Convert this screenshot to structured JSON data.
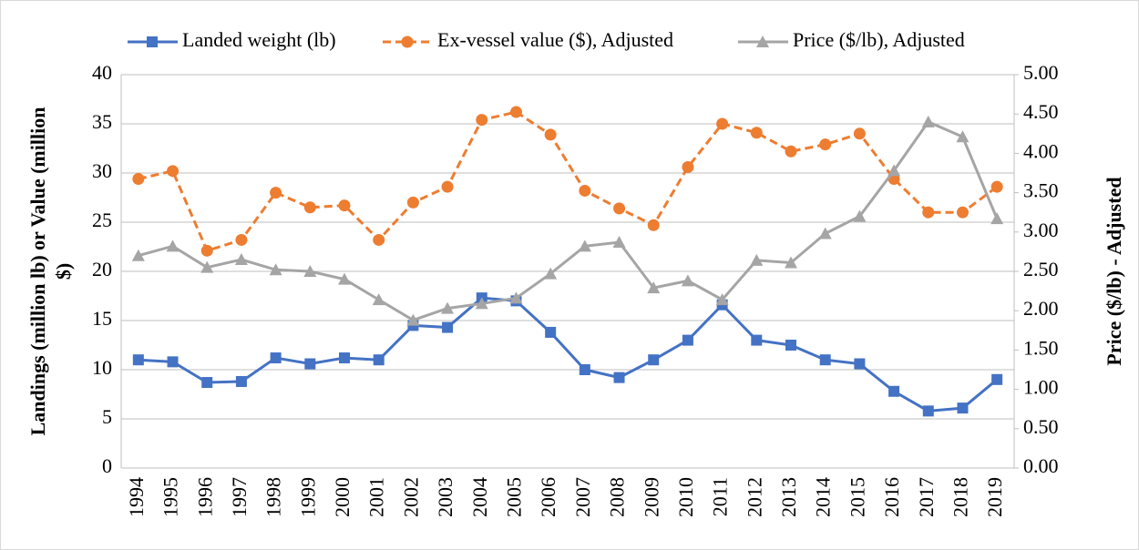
{
  "chart_data": {
    "type": "line",
    "categories": [
      "1994",
      "1995",
      "1996",
      "1997",
      "1998",
      "1999",
      "2000",
      "2001",
      "2002",
      "2003",
      "2004",
      "2005",
      "2006",
      "2007",
      "2008",
      "2009",
      "2010",
      "2011",
      "2012",
      "2013",
      "2014",
      "2015",
      "2016",
      "2017",
      "2018",
      "2019"
    ],
    "series": [
      {
        "name": "Landed weight (lb)",
        "color": "#4472c4",
        "marker": "square",
        "dash": false,
        "values": [
          11.0,
          10.8,
          8.7,
          8.8,
          11.2,
          10.6,
          11.2,
          11.0,
          14.5,
          14.3,
          17.3,
          17.0,
          13.8,
          10.0,
          9.2,
          11.0,
          13.0,
          16.6,
          13.0,
          12.5,
          11.0,
          10.6,
          7.8,
          5.8,
          6.1,
          9.0
        ]
      },
      {
        "name": "Ex-vessel value ($), Adjusted",
        "color": "#ed7d31",
        "marker": "circle",
        "dash": true,
        "values": [
          29.4,
          30.2,
          22.1,
          23.2,
          28.0,
          26.5,
          26.7,
          23.2,
          27.0,
          28.6,
          35.4,
          36.2,
          33.9,
          28.2,
          26.4,
          24.7,
          30.6,
          35.0,
          34.1,
          32.2,
          32.9,
          34.0,
          29.4,
          26.0,
          26.0,
          28.6
        ]
      },
      {
        "name": "Price ($/lb), Adjusted",
        "color": "#a5a5a5",
        "marker": "triangle",
        "dash": false,
        "axis": "y2",
        "values": [
          2.7,
          2.82,
          2.55,
          2.65,
          2.52,
          2.5,
          2.4,
          2.14,
          1.88,
          2.03,
          2.09,
          2.16,
          2.47,
          2.82,
          2.87,
          2.29,
          2.38,
          2.14,
          2.64,
          2.61,
          2.98,
          3.2,
          3.78,
          4.4,
          4.21,
          3.17
        ]
      }
    ],
    "y_label": [
      "Landings (million lb) or Value (million",
      "$)"
    ],
    "y2_label": "Price ($/lb) - Adjusted",
    "ylim": [
      0,
      40
    ],
    "yticks": [
      0,
      5,
      10,
      15,
      20,
      25,
      30,
      35,
      40
    ],
    "y2lim": [
      0,
      5
    ],
    "y2ticks": [
      {
        "value": 0,
        "label": "0.00"
      },
      {
        "value": 0.5,
        "label": "0.50"
      },
      {
        "value": 1,
        "label": "1.00"
      },
      {
        "value": 1.5,
        "label": "1.50"
      },
      {
        "value": 2,
        "label": "2.00"
      },
      {
        "value": 2.5,
        "label": "2.50"
      },
      {
        "value": 3,
        "label": "3.00"
      },
      {
        "value": 3.5,
        "label": "3.50"
      },
      {
        "value": 4,
        "label": "4.00"
      },
      {
        "value": 4.5,
        "label": "4.50"
      },
      {
        "value": 5,
        "label": "5.00"
      }
    ],
    "grid": true,
    "legend": "top"
  }
}
